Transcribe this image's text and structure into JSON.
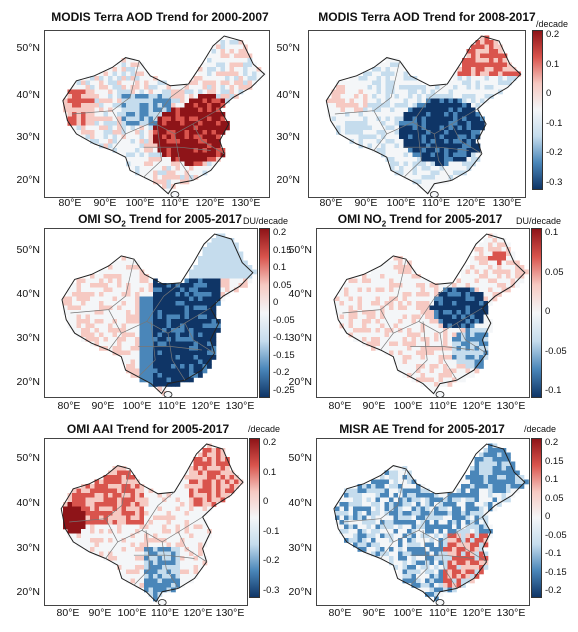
{
  "colors": {
    "red_strong": "#8e1418",
    "red_mid": "#d9544d",
    "red_light": "#f6c9c2",
    "neutral": "#f4f6f8",
    "blue_light": "#c5dced",
    "blue_mid": "#4a86b9",
    "blue_strong": "#0f3566"
  },
  "lat_labels": [
    "50°N",
    "40°N",
    "30°N",
    "20°N"
  ],
  "lon_labels": [
    "80°E",
    "90°E",
    "100°E",
    "110°E",
    "120°E",
    "130°E"
  ],
  "panels": [
    {
      "id": "aod-2000-2007",
      "title": "MODIS Terra AOD Trend for 2000-2007",
      "subscript": "",
      "title_tail": "",
      "unit": "",
      "colorbar": null,
      "pattern": "aod1"
    },
    {
      "id": "aod-2008-2017",
      "title": "MODIS Terra AOD Trend for 2008-2017",
      "subscript": "",
      "title_tail": "",
      "unit": "/decade",
      "colorbar": {
        "ticks": [
          "0.2",
          "0.1",
          "0",
          "-0.1",
          "-0.2",
          "-0.3"
        ]
      },
      "pattern": "aod2"
    },
    {
      "id": "so2",
      "title": "OMI SO",
      "subscript": "2",
      "title_tail": " Trend for 2005-2017",
      "unit": "DU/decade",
      "colorbar": {
        "ticks": [
          "0.2",
          "0.15",
          "0.1",
          "0.05",
          "0",
          "-0.05",
          "-0.1",
          "-0.15",
          "-0.2",
          "-0.25"
        ]
      },
      "pattern": "so2"
    },
    {
      "id": "no2",
      "title": "OMI NO",
      "subscript": "2",
      "title_tail": " Trend for 2005-2017",
      "unit": "DU/decade",
      "colorbar": {
        "ticks": [
          "0.1",
          "0.05",
          "0",
          "-0.05",
          "-0.1"
        ]
      },
      "pattern": "no2"
    },
    {
      "id": "aai",
      "title": "OMI AAI Trend for 2005-2017",
      "subscript": "",
      "title_tail": "",
      "unit": "/decade",
      "colorbar": {
        "ticks": [
          "0.2",
          "0.1",
          "0",
          "-0.1",
          "-0.2",
          "-0.3"
        ]
      },
      "pattern": "aai"
    },
    {
      "id": "ae",
      "title": "MISR AE Trend for 2005-2017",
      "subscript": "",
      "title_tail": "",
      "unit": "/decade",
      "colorbar": {
        "ticks": [
          "0.2",
          "0.15",
          "0.1",
          "0.05",
          "0",
          "-0.05",
          "-0.1",
          "-0.15",
          "-0.2"
        ]
      },
      "pattern": "ae"
    }
  ]
}
